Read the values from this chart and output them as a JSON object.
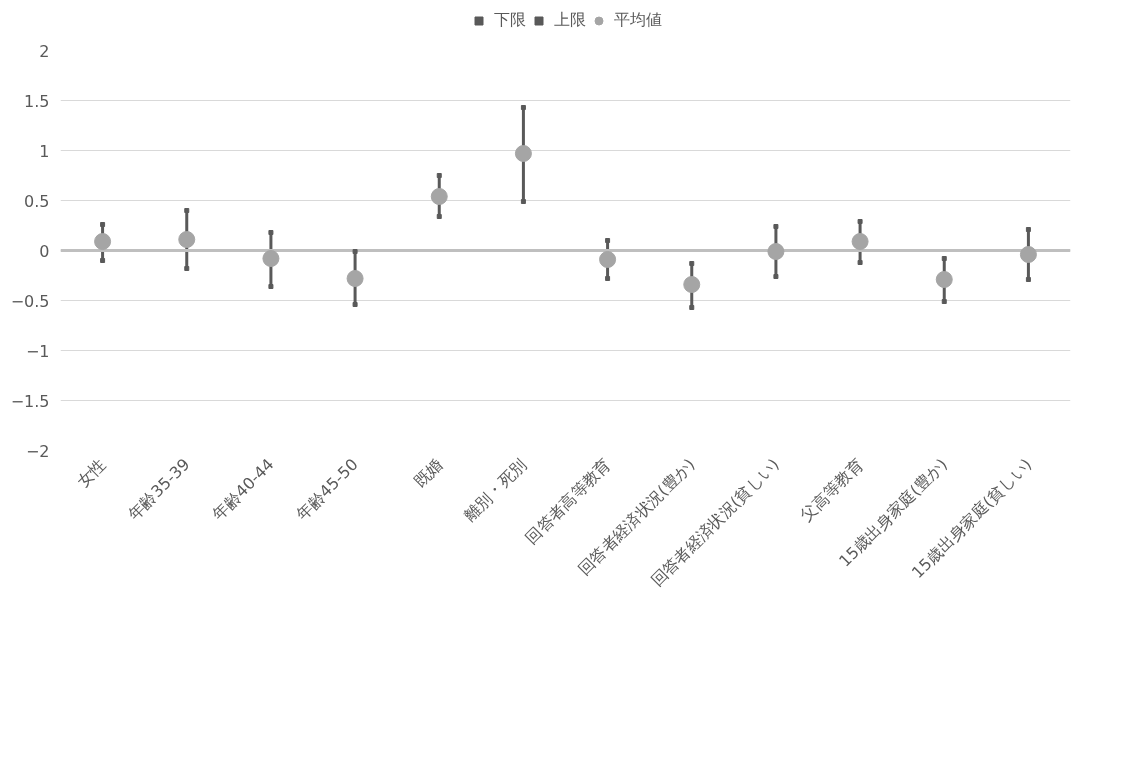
{
  "chart_data": {
    "type": "scatter",
    "categories": [
      "女性",
      "年齢35-39",
      "年齢40-44",
      "年齢45-50",
      "既婚",
      "離別・死別",
      "回答者高等教育",
      "回答者経済状況(豊か)",
      "回答者経済状況(貧しい)",
      "父高等教育",
      "15歳出身家庭(豊か)",
      "15歳出身家庭(貧しい)"
    ],
    "series": [
      {
        "name": "下限",
        "marker": "square",
        "color": "#595959",
        "values": [
          -0.1,
          -0.18,
          -0.36,
          -0.54,
          0.34,
          0.49,
          -0.28,
          -0.57,
          -0.26,
          -0.12,
          -0.51,
          -0.29
        ]
      },
      {
        "name": "上限",
        "marker": "square",
        "color": "#595959",
        "values": [
          0.26,
          0.4,
          0.18,
          -0.01,
          0.75,
          1.43,
          0.1,
          -0.13,
          0.24,
          0.29,
          -0.08,
          0.21
        ]
      },
      {
        "name": "平均値",
        "color": "#a5a5a5",
        "values": [
          0.09,
          0.11,
          -0.08,
          -0.28,
          0.54,
          0.97,
          -0.09,
          -0.34,
          -0.01,
          0.09,
          -0.29,
          -0.04
        ]
      }
    ],
    "ylim": [
      -2,
      2
    ],
    "yticks": [
      2,
      1.5,
      1,
      0.5,
      0,
      -0.5,
      -1,
      -1.5,
      -2
    ],
    "ref_lines": [
      {
        "axis": "y",
        "value": 0,
        "color": "#bfbfbf"
      }
    ],
    "grid": "y",
    "legend": "top",
    "marker": "circle"
  }
}
